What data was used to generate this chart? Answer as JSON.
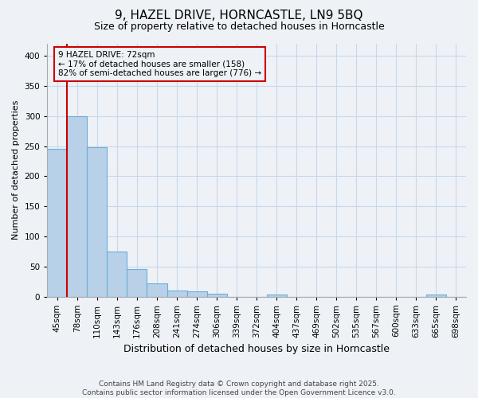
{
  "title_line1": "9, HAZEL DRIVE, HORNCASTLE, LN9 5BQ",
  "title_line2": "Size of property relative to detached houses in Horncastle",
  "xlabel": "Distribution of detached houses by size in Horncastle",
  "ylabel": "Number of detached properties",
  "footnote": "Contains HM Land Registry data © Crown copyright and database right 2025.\nContains public sector information licensed under the Open Government Licence v3.0.",
  "bins": [
    "45sqm",
    "78sqm",
    "110sqm",
    "143sqm",
    "176sqm",
    "208sqm",
    "241sqm",
    "274sqm",
    "306sqm",
    "339sqm",
    "372sqm",
    "404sqm",
    "437sqm",
    "469sqm",
    "502sqm",
    "535sqm",
    "567sqm",
    "600sqm",
    "633sqm",
    "665sqm",
    "698sqm"
  ],
  "counts": [
    245,
    300,
    248,
    75,
    45,
    22,
    10,
    8,
    5,
    0,
    0,
    3,
    0,
    0,
    0,
    0,
    0,
    0,
    0,
    3,
    0
  ],
  "bar_color": "#b8d0e8",
  "bar_edge_color": "#6baed6",
  "vline_color": "#cc0000",
  "vline_x": 1,
  "annotation_text": "9 HAZEL DRIVE: 72sqm\n← 17% of detached houses are smaller (158)\n82% of semi-detached houses are larger (776) →",
  "annotation_box_color": "#cc0000",
  "ylim": [
    0,
    420
  ],
  "yticks": [
    0,
    50,
    100,
    150,
    200,
    250,
    300,
    350,
    400
  ],
  "grid_color": "#c8d8ea",
  "bg_color": "#eef2f7",
  "title_fontsize": 11,
  "subtitle_fontsize": 9,
  "ylabel_fontsize": 8,
  "xlabel_fontsize": 9,
  "tick_fontsize": 7.5,
  "footnote_fontsize": 6.5,
  "annotation_fontsize": 7.5
}
